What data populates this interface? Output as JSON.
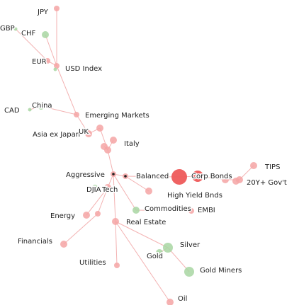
{
  "colors": {
    "risk_on": "#f4a4a4",
    "risk_on_strong": "#ee5a5a",
    "risk_off": "#a8d6a2",
    "edge": "#f3b2b2",
    "label": "#222222",
    "marker": "#222222"
  },
  "graph": {
    "nodes": [
      {
        "id": "jpy",
        "label": "JPY",
        "group": "risk_on",
        "weight": 1
      },
      {
        "id": "gbp",
        "label": "GBP",
        "group": "risk_off",
        "weight": 0
      },
      {
        "id": "chf",
        "label": "CHF",
        "group": "risk_off",
        "weight": 2
      },
      {
        "id": "eur",
        "label": "EUR",
        "group": "risk_on",
        "weight": 1
      },
      {
        "id": "usd_index",
        "label": "USD Index",
        "group": "risk_on",
        "weight": 1
      },
      {
        "id": "cad",
        "label": "CAD",
        "group": "risk_off",
        "weight": 0
      },
      {
        "id": "china",
        "label": "China",
        "group": "risk_off",
        "weight": 2
      },
      {
        "id": "emerging_markets",
        "label": "Emerging Markets",
        "group": "risk_on",
        "weight": 1
      },
      {
        "id": "asia_ex_japan",
        "label": "Asia ex Japan",
        "group": "risk_on",
        "weight": 2
      },
      {
        "id": "uk",
        "label": "UK",
        "group": "risk_on",
        "weight": 2
      },
      {
        "id": "italy",
        "label": "Italy",
        "group": "risk_on",
        "weight": 2
      },
      {
        "id": "aggressive",
        "label": "Aggressive",
        "group": "risk_on",
        "weight": 1,
        "marker": true
      },
      {
        "id": "balanced",
        "label": "Balanced",
        "group": "risk_on",
        "weight": 1,
        "marker": true
      },
      {
        "id": "dji",
        "label": "DJIA",
        "group": "risk_off",
        "weight": 1
      },
      {
        "id": "tech",
        "label": "Tech",
        "group": "risk_on",
        "weight": 2
      },
      {
        "id": "corp_bonds",
        "label": "Corp Bonds",
        "group": "risk_on_strong",
        "weight": 4
      },
      {
        "id": "high_yield",
        "label": "High Yield Bnds",
        "group": "risk_on",
        "weight": 2
      },
      {
        "id": "tips",
        "label": "TIPS",
        "group": "risk_on",
        "weight": 2
      },
      {
        "id": "gov_20y",
        "label": "20Y+ Gov't",
        "group": "risk_on",
        "weight": 2
      },
      {
        "id": "energy",
        "label": "Energy",
        "group": "risk_on",
        "weight": 2
      },
      {
        "id": "commodities",
        "label": "Commodities",
        "group": "risk_off",
        "weight": 2
      },
      {
        "id": "embi",
        "label": "EMBI",
        "group": "risk_on",
        "weight": 1
      },
      {
        "id": "real_estate",
        "label": "Real Estate",
        "group": "risk_on",
        "weight": 2
      },
      {
        "id": "financials",
        "label": "Financials",
        "group": "risk_on",
        "weight": 2
      },
      {
        "id": "silver",
        "label": "Silver",
        "group": "risk_off",
        "weight": 3
      },
      {
        "id": "gold",
        "label": "Gold",
        "group": "risk_off",
        "weight": 2
      },
      {
        "id": "gold_miners",
        "label": "Gold Miners",
        "group": "risk_off",
        "weight": 3
      },
      {
        "id": "utilities",
        "label": "Utilities",
        "group": "risk_on",
        "weight": 1
      },
      {
        "id": "oil",
        "label": "Oil",
        "group": "risk_on",
        "weight": 2
      }
    ],
    "unlabeled_nodes": [
      {
        "id": "n_bal_big",
        "group": "risk_on_strong",
        "weight": 5
      },
      {
        "id": "n_uk_a",
        "group": "risk_on",
        "weight": 2
      },
      {
        "id": "n_uk_b",
        "group": "risk_on",
        "weight": 2
      },
      {
        "id": "n_bond_a",
        "group": "risk_on",
        "weight": 2
      },
      {
        "id": "n_bond_b",
        "group": "risk_on",
        "weight": 2
      },
      {
        "id": "n_energy_b",
        "group": "risk_on",
        "weight": 1
      },
      {
        "id": "n_usd_dot",
        "group": "risk_off",
        "weight": 0
      }
    ],
    "edges": [
      [
        "jpy",
        "usd_index"
      ],
      [
        "chf",
        "usd_index"
      ],
      [
        "eur",
        "usd_index"
      ],
      [
        "gbp",
        "eur"
      ],
      [
        "usd_index",
        "emerging_markets"
      ],
      [
        "china",
        "emerging_markets"
      ],
      [
        "cad",
        "china"
      ],
      [
        "emerging_markets",
        "asia_ex_japan"
      ],
      [
        "asia_ex_japan",
        "uk"
      ],
      [
        "uk",
        "n_uk_a"
      ],
      [
        "n_uk_a",
        "n_uk_b"
      ],
      [
        "n_uk_a",
        "italy"
      ],
      [
        "n_uk_a",
        "aggressive"
      ],
      [
        "aggressive",
        "balanced"
      ],
      [
        "balanced",
        "n_bal_big"
      ],
      [
        "n_bal_big",
        "corp_bonds"
      ],
      [
        "corp_bonds",
        "n_bond_a"
      ],
      [
        "n_bond_a",
        "n_bond_b"
      ],
      [
        "n_bond_b",
        "tips"
      ],
      [
        "n_bond_b",
        "gov_20y"
      ],
      [
        "balanced",
        "high_yield"
      ],
      [
        "aggressive",
        "tech"
      ],
      [
        "tech",
        "dji"
      ],
      [
        "tech",
        "energy"
      ],
      [
        "tech",
        "n_energy_b"
      ],
      [
        "aggressive",
        "real_estate"
      ],
      [
        "n_energy_b",
        "financials"
      ],
      [
        "real_estate",
        "utilities"
      ],
      [
        "aggressive",
        "commodities"
      ],
      [
        "commodities",
        "embi"
      ],
      [
        "real_estate",
        "silver"
      ],
      [
        "silver",
        "gold"
      ],
      [
        "silver",
        "gold_miners"
      ],
      [
        "real_estate",
        "oil"
      ]
    ]
  }
}
